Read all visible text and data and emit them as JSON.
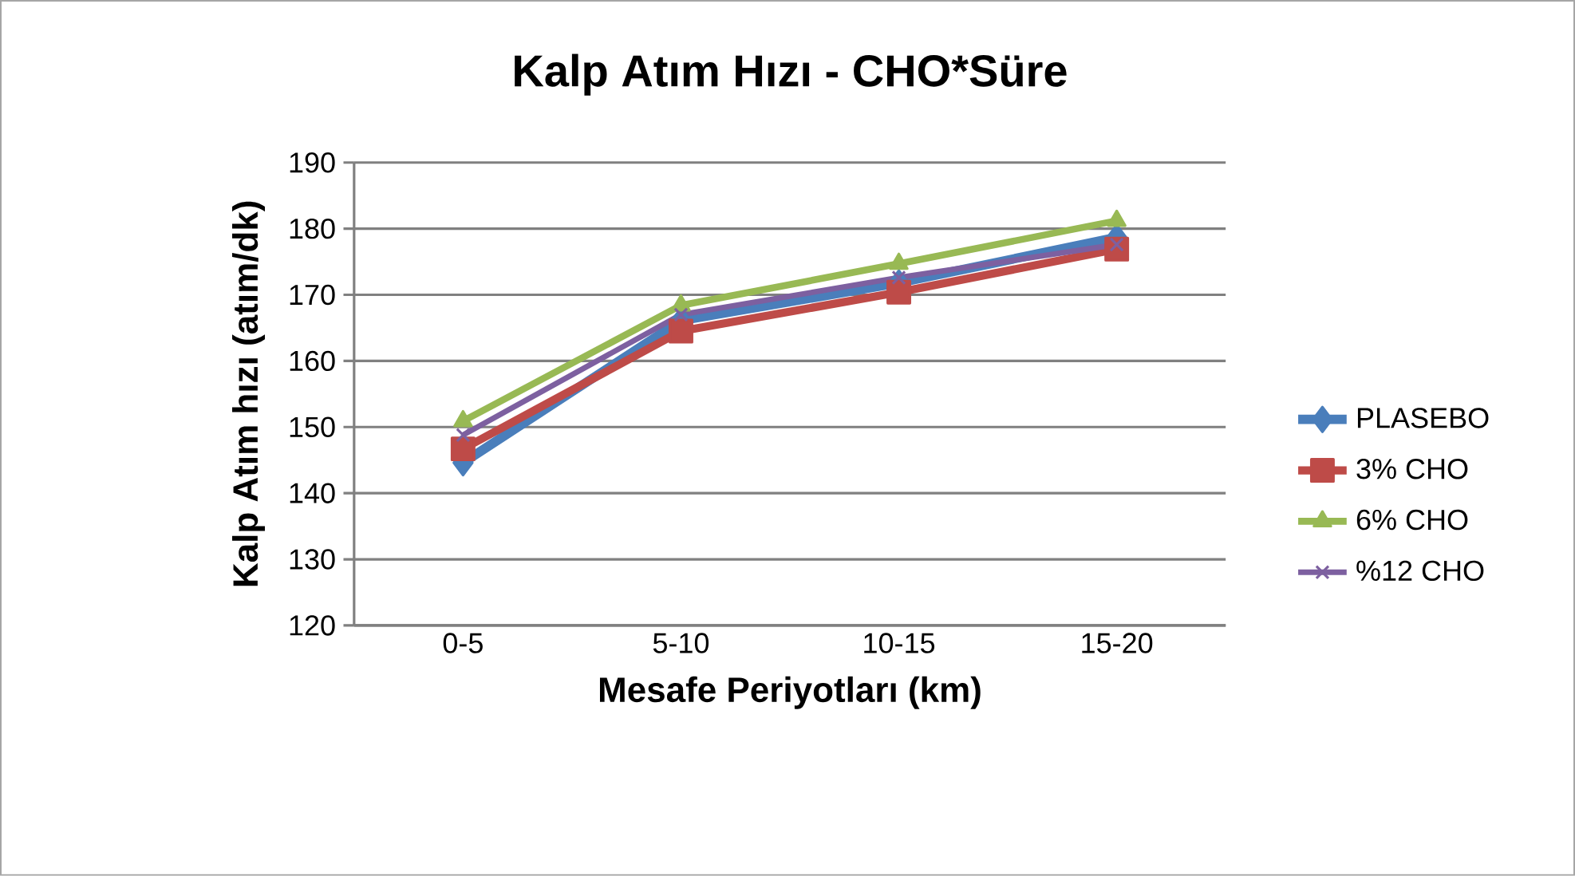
{
  "chart_data": {
    "type": "line",
    "title": "Kalp Atım Hızı - CHO*Süre",
    "xlabel": "Mesafe Periyotları (km)",
    "ylabel": "Kalp Atım hızı (atım/dk)",
    "categories": [
      "0-5",
      "5-10",
      "10-15",
      "15-20"
    ],
    "series": [
      {
        "name": "PLASEBO",
        "color": "#4a7ebb",
        "marker": "diamond",
        "values": [
          144.6,
          166.1,
          171.8,
          178.7
        ]
      },
      {
        "name": "3% CHO",
        "color": "#be4b48",
        "marker": "square",
        "values": [
          146.7,
          164.5,
          170.4,
          176.9
        ]
      },
      {
        "name": "6% CHO",
        "color": "#98b954",
        "marker": "triangle",
        "values": [
          150.9,
          168.4,
          174.7,
          181.2
        ]
      },
      {
        "name": "%12 CHO",
        "color": "#7d60a0",
        "marker": "cross",
        "values": [
          148.8,
          167.0,
          172.6,
          177.6
        ]
      }
    ],
    "ylim": [
      120,
      190
    ],
    "yticks": [
      120,
      130,
      140,
      150,
      160,
      170,
      180,
      190
    ],
    "grid": "y",
    "legend": "right",
    "line_style": "solid"
  }
}
